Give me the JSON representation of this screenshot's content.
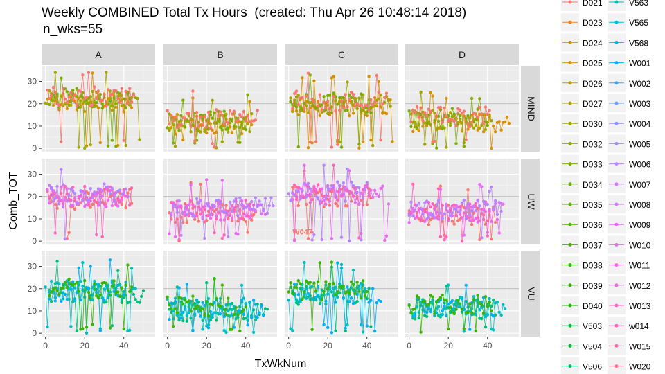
{
  "title": "Weekly COMBINED Total Tx Hours  (created: Thu Apr 26 10:48:14 2018)",
  "subtitle": "n_wks=55",
  "chart_data": {
    "type": "line",
    "xlabel": "TxWkNum",
    "ylabel": "Comb_TOT",
    "xlim": [
      -2,
      56
    ],
    "ylim": [
      -1.5,
      37
    ],
    "x_ticks": [
      0,
      20,
      40
    ],
    "y_ticks": [
      0,
      10,
      20,
      30
    ],
    "reference_line_y": 20,
    "grid": true,
    "columns": [
      "A",
      "B",
      "C",
      "D"
    ],
    "rows": [
      "MIND",
      "UW",
      "VU"
    ],
    "row_colors": {
      "MIND": [
        "#D89000",
        "#A3A500",
        "#7CAE00",
        "#F8766D"
      ],
      "UW": [
        "#F8766D",
        "#E76BF3",
        "#FF62BC",
        "#B983FF"
      ],
      "VU": [
        "#00BF7D",
        "#00B0F6",
        "#00BFC4",
        "#39B600"
      ]
    },
    "panel_levels": {
      "MIND": {
        "A": 22,
        "B": 12,
        "C": 20,
        "D": 13
      },
      "UW": {
        "A": 20,
        "B": 14,
        "C": 21,
        "D": 13
      },
      "VU": {
        "A": 19,
        "B": 11,
        "C": 18,
        "D": 12
      }
    },
    "panel_annotations": [
      {
        "row": "UW",
        "col": "C",
        "text": "W047",
        "x": 2,
        "y": 3,
        "color": "#F8766D"
      }
    ],
    "legend": {
      "position": "right",
      "col1": [
        "D021",
        "D023",
        "D024",
        "D025",
        "D026",
        "D027",
        "D030",
        "D032",
        "D033",
        "D034",
        "D035",
        "D036",
        "D037",
        "D038",
        "D039",
        "D040",
        "V503",
        "V504",
        "V506"
      ],
      "col1_colors": [
        "#F8766D",
        "#E88526",
        "#D39200",
        "#C89B00",
        "#B79F00",
        "#AEA200",
        "#A3A500",
        "#93AA00",
        "#7CAE00",
        "#6FB200",
        "#5EB300",
        "#4FB600",
        "#3DB700",
        "#39B600",
        "#2CB800",
        "#1EBA00",
        "#00BA38",
        "#00BB45",
        "#00BE67"
      ],
      "col2": [
        "V563",
        "V565",
        "V568",
        "W001",
        "W002",
        "W003",
        "W004",
        "W005",
        "W006",
        "W007",
        "W008",
        "W009",
        "W010",
        "W011",
        "W012",
        "W013",
        "w014",
        "W015",
        "W020"
      ],
      "col2_colors": [
        "#00C0AF",
        "#00BCD8",
        "#00B4EF",
        "#00B0F6",
        "#35A2FF",
        "#619CFF",
        "#8F91FF",
        "#9590FF",
        "#B983FF",
        "#C77CFF",
        "#D575FE",
        "#E76BF3",
        "#F066E8",
        "#F564E3",
        "#FA62D8",
        "#FF61C3",
        "#FF62BC",
        "#FF64B0",
        "#FF6C91"
      ]
    }
  }
}
